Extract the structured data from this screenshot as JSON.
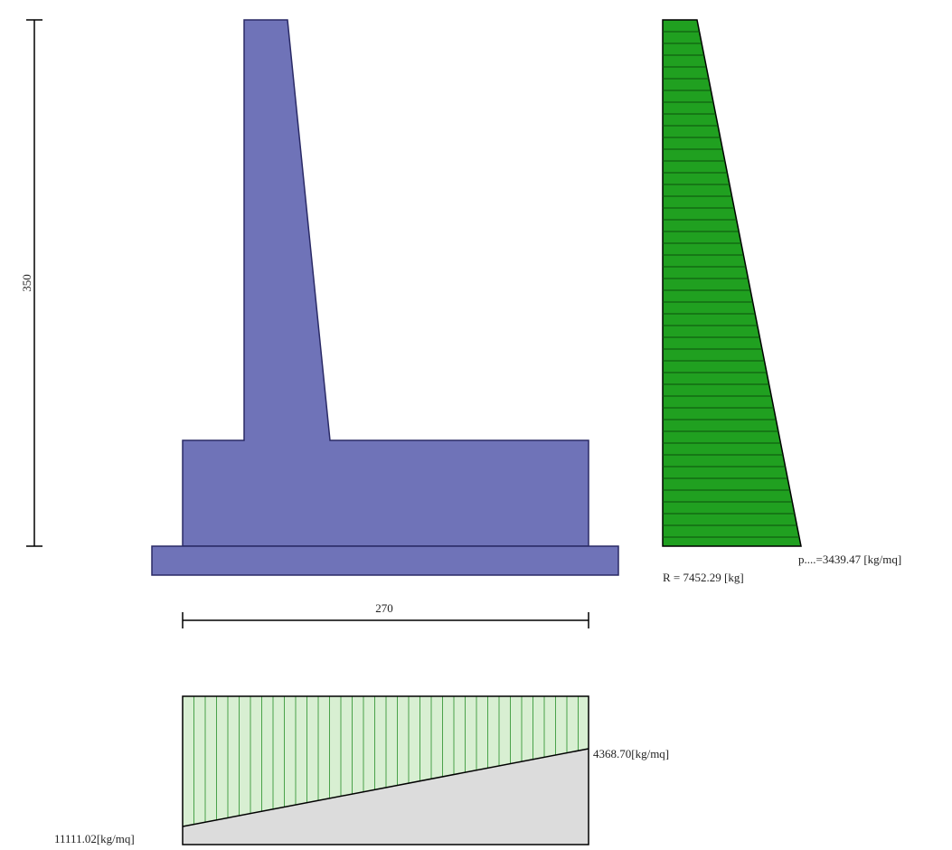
{
  "colors": {
    "wall_fill": "#6f73b8",
    "wall_edge": "#2a2a66",
    "pressure_fill": "#20a020",
    "pressure_lines": "#0b4f0b",
    "base_fill": "#d8efd2",
    "base_lines": "#4aa24a",
    "soil_fill": "#dcdcdc",
    "dimension_line": "#000000",
    "text": "#222222"
  },
  "dimensions": {
    "height_label": "350",
    "width_label": "270"
  },
  "lateral_pressure": {
    "max_pressure_label": "p....=3439.47 [kg/mq]",
    "resultant_label": "R = 7452.29 [kg]"
  },
  "base_pressure": {
    "left_value_label": "11111.02[kg/mq]",
    "right_value_label": "4368.70[kg/mq]"
  }
}
